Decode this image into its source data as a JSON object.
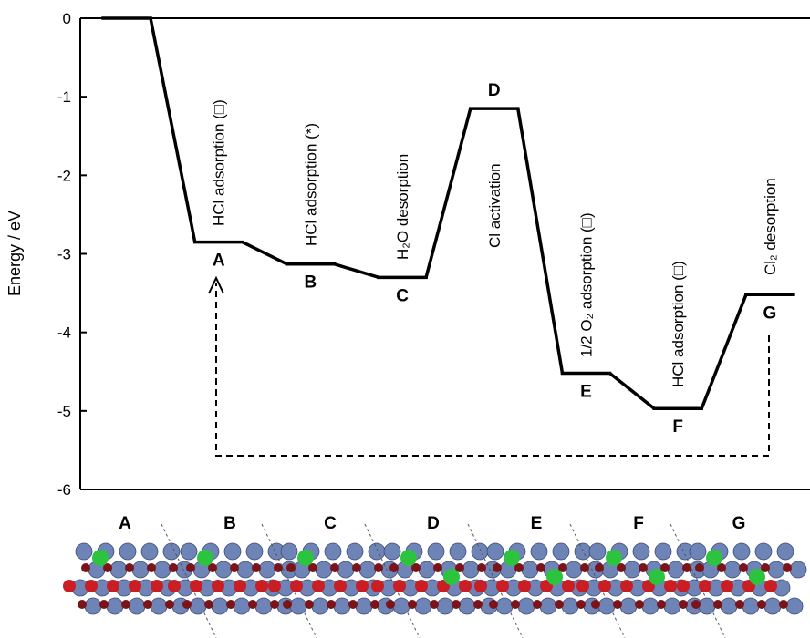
{
  "chart_data": {
    "type": "step-energy",
    "ylabel": "Energy / eV",
    "categories": [
      null,
      "A",
      "B",
      "C",
      "D",
      "E",
      "F",
      "G"
    ],
    "values": [
      0,
      -2.85,
      -3.13,
      -3.3,
      -1.15,
      -4.52,
      -4.97,
      -3.52
    ],
    "steps": [
      "HCl adsorption (□)",
      "HCl adsorption (*)",
      "H₂O desorption",
      "Cl activation",
      "1/2 O₂ adsorption (□)",
      "HCl adsorption (□)",
      "Cl₂ desorption"
    ],
    "color": "#000000",
    "ylim": [
      -6,
      0
    ],
    "yticks": [
      0,
      -1,
      -2,
      -3,
      -4,
      -5,
      -6
    ]
  }
}
